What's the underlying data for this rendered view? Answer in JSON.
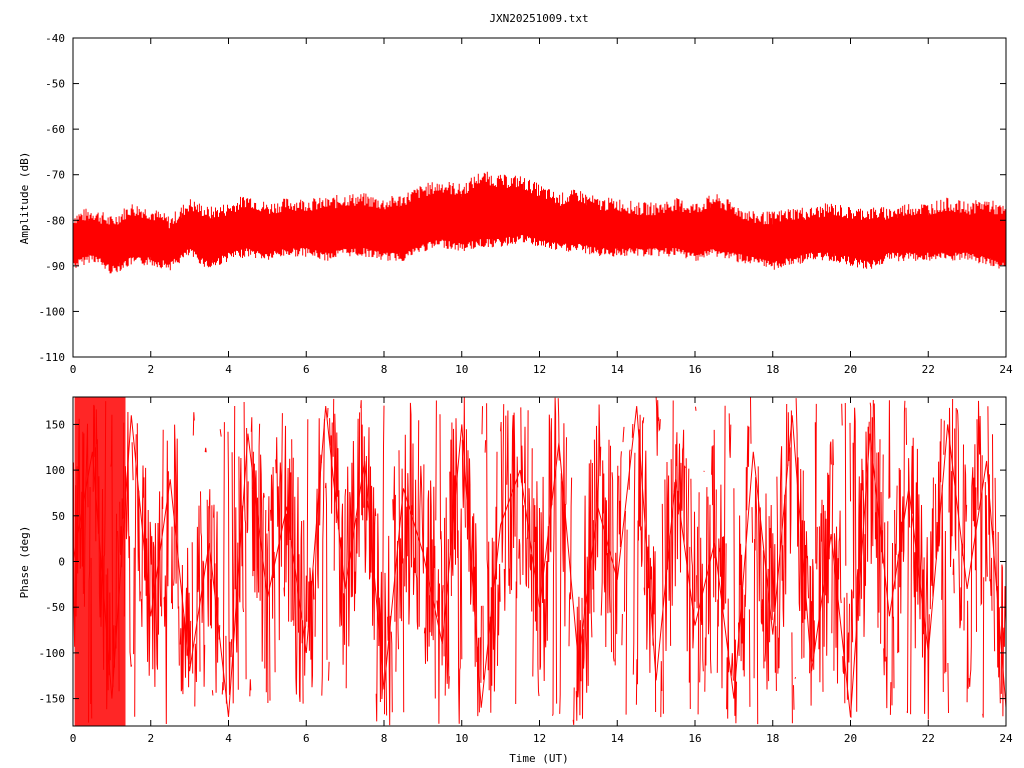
{
  "title": "JXN20251009.txt",
  "colors": {
    "series": "#ff0000",
    "axes": "#000000",
    "background": "#ffffff"
  },
  "chart_data": [
    {
      "type": "line",
      "title": "JXN20251009.txt",
      "xlabel": "",
      "ylabel": "Amplitude (dB)",
      "xlim": [
        0,
        24
      ],
      "ylim": [
        -110,
        -40
      ],
      "xticks": [
        "0",
        "2",
        "4",
        "6",
        "8",
        "10",
        "12",
        "14",
        "16",
        "18",
        "20",
        "22",
        "24"
      ],
      "yticks": [
        "-40",
        "-50",
        "-60",
        "-70",
        "-80",
        "-90",
        "-100",
        "-110"
      ],
      "grid": false,
      "series": [
        {
          "color": "#ff0000",
          "x": [
            0,
            0.5,
            1.0,
            1.5,
            2.0,
            2.5,
            3.0,
            3.5,
            4.0,
            4.5,
            5.0,
            5.5,
            6.0,
            6.5,
            7.0,
            7.5,
            8.0,
            8.5,
            9.0,
            9.5,
            10.0,
            10.5,
            11.0,
            11.5,
            12.0,
            12.5,
            13.0,
            13.5,
            14.0,
            14.5,
            15.0,
            15.5,
            16.0,
            16.5,
            17.0,
            17.5,
            18.0,
            18.5,
            19.0,
            19.5,
            20.0,
            20.5,
            21.0,
            21.5,
            22.0,
            22.5,
            23.0,
            23.5,
            24.0
          ],
          "y": [
            -84,
            -83,
            -86,
            -83,
            -83,
            -85,
            -83,
            -84,
            -83,
            -82,
            -83,
            -82,
            -82,
            -82,
            -81,
            -81,
            -82,
            -82,
            -80,
            -79,
            -80,
            -80,
            -79,
            -79,
            -80,
            -81,
            -81,
            -82,
            -82,
            -83,
            -83,
            -83,
            -83,
            -82,
            -84,
            -85,
            -85,
            -84,
            -84,
            -84,
            -84,
            -85,
            -84,
            -84,
            -84,
            -84,
            -84,
            -84,
            -85
          ],
          "band_low": [
            -89,
            -87,
            -90,
            -88,
            -88,
            -89,
            -86,
            -89,
            -87,
            -86,
            -87,
            -86,
            -86,
            -87,
            -86,
            -86,
            -87,
            -87,
            -85,
            -84,
            -85,
            -84,
            -84,
            -83,
            -84,
            -85,
            -85,
            -86,
            -86,
            -86,
            -86,
            -86,
            -87,
            -86,
            -87,
            -88,
            -89,
            -88,
            -87,
            -87,
            -88,
            -89,
            -87,
            -87,
            -87,
            -87,
            -87,
            -88,
            -89
          ],
          "band_high": [
            -81,
            -80,
            -82,
            -79,
            -80,
            -82,
            -78,
            -80,
            -79,
            -77,
            -79,
            -78,
            -78,
            -78,
            -77,
            -77,
            -78,
            -77,
            -75,
            -74,
            -75,
            -72,
            -73,
            -73,
            -75,
            -77,
            -76,
            -78,
            -78,
            -79,
            -79,
            -78,
            -79,
            -77,
            -79,
            -81,
            -81,
            -80,
            -80,
            -79,
            -80,
            -80,
            -80,
            -79,
            -79,
            -78,
            -79,
            -78,
            -80
          ]
        }
      ]
    },
    {
      "type": "line",
      "title": "",
      "xlabel": "Time (UT)",
      "ylabel": "Phase (deg)",
      "xlim": [
        0,
        24
      ],
      "ylim": [
        -180,
        180
      ],
      "xticks": [
        "0",
        "2",
        "4",
        "6",
        "8",
        "10",
        "12",
        "14",
        "16",
        "18",
        "20",
        "22",
        "24"
      ],
      "yticks": [
        "150",
        "100",
        "50",
        "0",
        "-50",
        "-100",
        "-150"
      ],
      "grid": false,
      "series": [
        {
          "color": "#ff0000",
          "x": [
            0,
            0.5,
            1.0,
            1.5,
            2.0,
            2.5,
            3.0,
            3.5,
            4.0,
            4.5,
            5.0,
            5.5,
            6.0,
            6.5,
            7.0,
            7.5,
            8.0,
            8.5,
            9.0,
            9.5,
            10.0,
            10.5,
            11.0,
            11.5,
            12.0,
            12.5,
            13.0,
            13.5,
            14.0,
            14.5,
            15.0,
            15.5,
            16.0,
            16.5,
            17.0,
            17.5,
            18.0,
            18.5,
            19.0,
            19.5,
            20.0,
            20.5,
            21.0,
            21.5,
            22.0,
            22.5,
            23.0,
            23.5,
            24.0
          ],
          "y": [
            0,
            120,
            -150,
            160,
            -60,
            90,
            -120,
            20,
            -170,
            140,
            -40,
            60,
            -100,
            170,
            -30,
            110,
            -140,
            80,
            10,
            -90,
            150,
            -160,
            40,
            100,
            -50,
            130,
            -110,
            60,
            -20,
            170,
            -130,
            90,
            -70,
            20,
            -150,
            120,
            -80,
            160,
            -120,
            30,
            -170,
            140,
            -60,
            80,
            -100,
            150,
            -30,
            110,
            -160
          ]
        }
      ]
    }
  ]
}
